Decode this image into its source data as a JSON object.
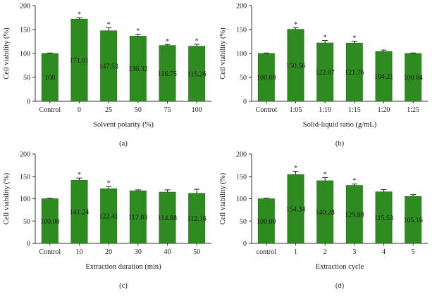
{
  "colors": {
    "bar": "#2e8b20",
    "bar_edge": "#1f6a14",
    "axis": "#333333",
    "text": "#1a1a1a"
  },
  "chart_data": [
    {
      "panel_label": "(a)",
      "type": "bar",
      "title": "",
      "xlabel": "Solvent polarity (%)",
      "ylabel": "Cell viability (%)",
      "ylim": [
        0,
        200
      ],
      "yticks": [
        "0",
        "50",
        "100",
        "150",
        "200"
      ],
      "categories": [
        "Control",
        "0",
        "25",
        "50",
        "75",
        "100"
      ],
      "values": [
        100,
        171.81,
        147.53,
        136.32,
        116.75,
        115.26
      ],
      "errors": [
        1,
        3,
        6,
        4,
        2,
        4
      ],
      "value_labels": [
        "100",
        "171.81",
        "147.53",
        "136.32",
        "116.75",
        "115.26"
      ],
      "significance": [
        "",
        "*",
        "*",
        "*",
        "*",
        "*"
      ]
    },
    {
      "panel_label": "(b)",
      "type": "bar",
      "title": "",
      "xlabel": "Solid-liquid ratio (g/mL)",
      "ylabel": "Cell viability (%)",
      "ylim": [
        0,
        200
      ],
      "yticks": [
        "0",
        "50",
        "100",
        "150",
        "200"
      ],
      "categories": [
        "Control",
        "1:05",
        "1:10",
        "1:15",
        "1:20",
        "1:25"
      ],
      "values": [
        100.0,
        150.56,
        122.07,
        121.76,
        104.21,
        100.04
      ],
      "errors": [
        1,
        3,
        5,
        4,
        3,
        1
      ],
      "value_labels": [
        "100.00",
        "150.56",
        "122.07",
        "121.76",
        "104.21",
        "100.04"
      ],
      "significance": [
        "",
        "*",
        "*",
        "*",
        "",
        ""
      ]
    },
    {
      "panel_label": "(c)",
      "type": "bar",
      "title": "",
      "xlabel": "Extraction duration (min)",
      "ylabel": "Cell viability (%)",
      "ylim": [
        0,
        200
      ],
      "yticks": [
        "0",
        "50",
        "100",
        "150",
        "200"
      ],
      "categories": [
        "Control",
        "10",
        "20",
        "30",
        "40",
        "50"
      ],
      "values": [
        100.0,
        141.24,
        122.41,
        117.83,
        114.88,
        112.16
      ],
      "errors": [
        1,
        5,
        5,
        2,
        5,
        9
      ],
      "value_labels": [
        "100.00",
        "141.24",
        "122.41",
        "117.83",
        "114.88",
        "112.16"
      ],
      "significance": [
        "",
        "*",
        "*",
        "",
        "",
        ""
      ]
    },
    {
      "panel_label": "(d)",
      "type": "bar",
      "title": "",
      "xlabel": "Extraction cycle",
      "ylabel": "Cell viability (%)",
      "ylim": [
        0,
        200
      ],
      "yticks": [
        "0",
        "50",
        "100",
        "150",
        "200"
      ],
      "categories": [
        "control",
        "1",
        "2",
        "3",
        "4",
        "5"
      ],
      "values": [
        100.0,
        154.34,
        140.28,
        129.88,
        115.53,
        105.16
      ],
      "errors": [
        1,
        7,
        7,
        3,
        5,
        4
      ],
      "value_labels": [
        "100.00",
        "154.34",
        "140.28",
        "129.88",
        "115.53",
        "105.16"
      ],
      "significance": [
        "",
        "*",
        "*",
        "*",
        "",
        ""
      ]
    }
  ]
}
